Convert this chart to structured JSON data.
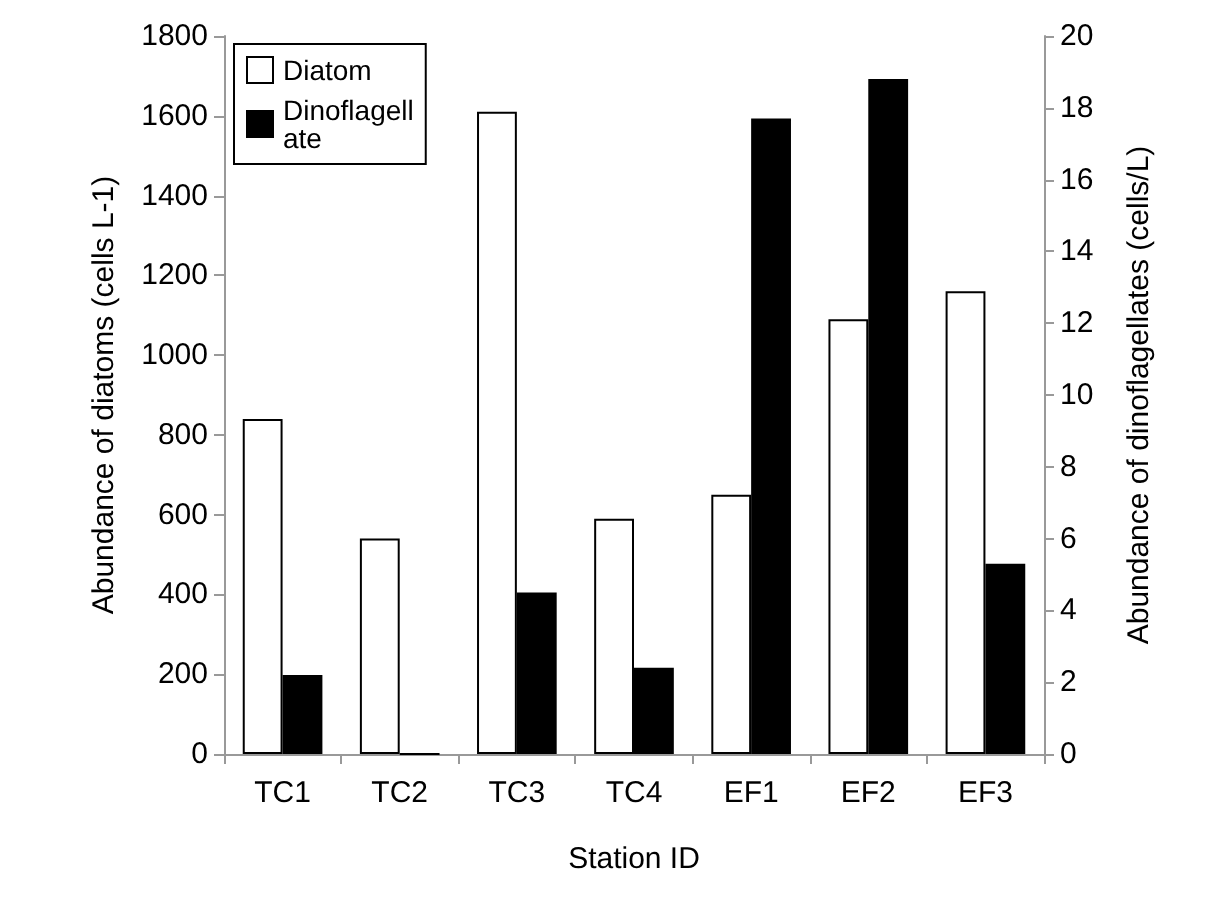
{
  "chart_data": {
    "type": "bar",
    "xlabel": "Station ID",
    "ylabel": "Abundance of diatoms (cells L-1)",
    "y2label": "Abundance of dinoflagellates (cells/L)",
    "categories": [
      "TC1",
      "TC2",
      "TC3",
      "TC4",
      "EF1",
      "EF2",
      "EF3"
    ],
    "series": [
      {
        "name": "Diatom",
        "color": "#ffffff",
        "values": [
          840,
          540,
          1610,
          590,
          650,
          1090,
          1160
        ]
      },
      {
        "name": "Dinoflagellate",
        "color": "#000000",
        "axis": "y2",
        "values": [
          2.2,
          0,
          4.5,
          2.4,
          17.7,
          18.8,
          5.3
        ]
      }
    ],
    "ylim": [
      0,
      1800
    ],
    "yticks": [
      0,
      200,
      400,
      600,
      800,
      1000,
      1200,
      1400,
      1600,
      1800
    ],
    "y2lim": [
      0,
      20
    ],
    "y2ticks": [
      0,
      2,
      4,
      6,
      8,
      10,
      12,
      14,
      16,
      18,
      20
    ],
    "legend": "top left",
    "grid": false
  }
}
